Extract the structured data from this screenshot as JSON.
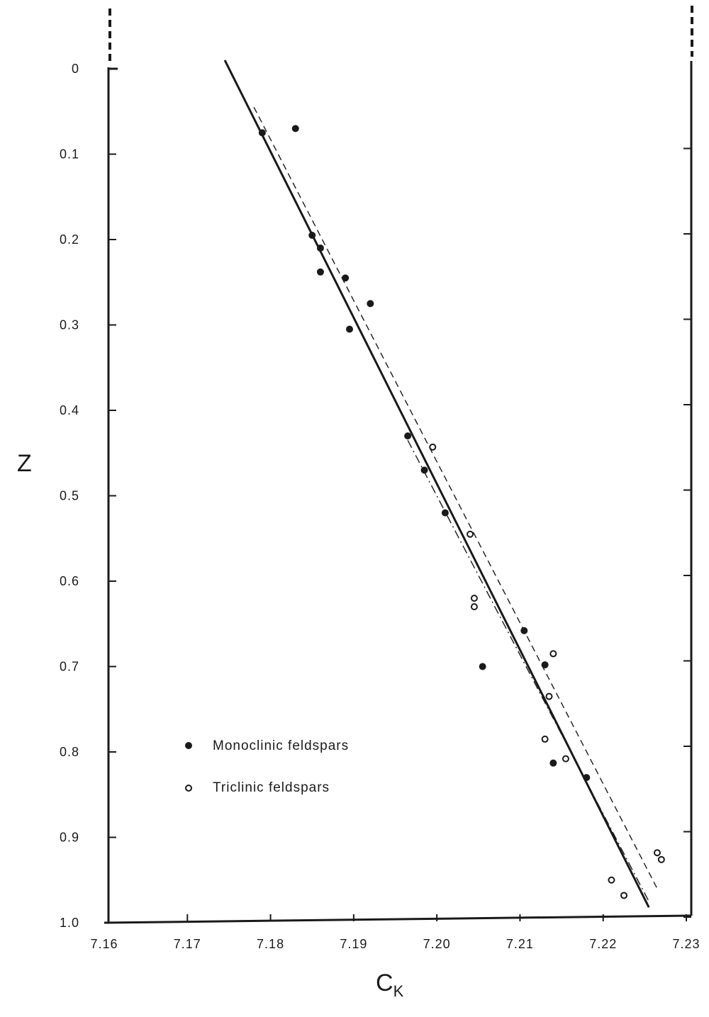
{
  "chart_data": {
    "type": "scatter",
    "title": "",
    "xlabel_main": "C",
    "xlabel_sub": "K",
    "ylabel": "Z",
    "xlim": [
      7.16,
      7.23
    ],
    "ylim": [
      0,
      1.0
    ],
    "y_inverted": true,
    "x_ticks": [
      "7.16",
      "7.17",
      "7.18",
      "7.19",
      "7.20",
      "7.21",
      "7.22",
      "7.23"
    ],
    "y_ticks": [
      "0",
      "0.1",
      "0.2",
      "0.3",
      "0.4",
      "0.5",
      "0.6",
      "0.7",
      "0.8",
      "0.9",
      "1.0"
    ],
    "series": [
      {
        "name": "Monoclinic feldspars",
        "marker": "filled",
        "points": [
          [
            7.179,
            0.075
          ],
          [
            7.183,
            0.07
          ],
          [
            7.185,
            0.195
          ],
          [
            7.186,
            0.21
          ],
          [
            7.186,
            0.238
          ],
          [
            7.189,
            0.245
          ],
          [
            7.1895,
            0.305
          ],
          [
            7.192,
            0.275
          ],
          [
            7.1965,
            0.43
          ],
          [
            7.1985,
            0.47
          ],
          [
            7.201,
            0.52
          ],
          [
            7.2055,
            0.7
          ],
          [
            7.2105,
            0.658
          ],
          [
            7.213,
            0.698
          ],
          [
            7.214,
            0.813
          ],
          [
            7.218,
            0.83
          ]
        ]
      },
      {
        "name": "Triclinic feldspars",
        "marker": "open",
        "points": [
          [
            7.1995,
            0.443
          ],
          [
            7.204,
            0.545
          ],
          [
            7.2045,
            0.62
          ],
          [
            7.2045,
            0.63
          ],
          [
            7.214,
            0.685
          ],
          [
            7.2135,
            0.735
          ],
          [
            7.213,
            0.785
          ],
          [
            7.2155,
            0.808
          ],
          [
            7.221,
            0.95
          ],
          [
            7.2225,
            0.968
          ],
          [
            7.2265,
            0.918
          ],
          [
            7.227,
            0.926
          ]
        ]
      }
    ],
    "fit_lines": [
      {
        "style": "solid",
        "from": [
          7.1745,
          -0.01
        ],
        "to": [
          7.2255,
          0.982
        ]
      },
      {
        "style": "dashed",
        "from": [
          7.178,
          0.045
        ],
        "to": [
          7.2265,
          0.96
        ]
      },
      {
        "style": "dashdot",
        "from": [
          7.1965,
          0.435
        ],
        "to": [
          7.2255,
          0.975
        ]
      }
    ],
    "grid": false,
    "legend_position": "lower-left"
  },
  "colors": {
    "ink": "#1a1a1a",
    "background": "#ffffff"
  }
}
